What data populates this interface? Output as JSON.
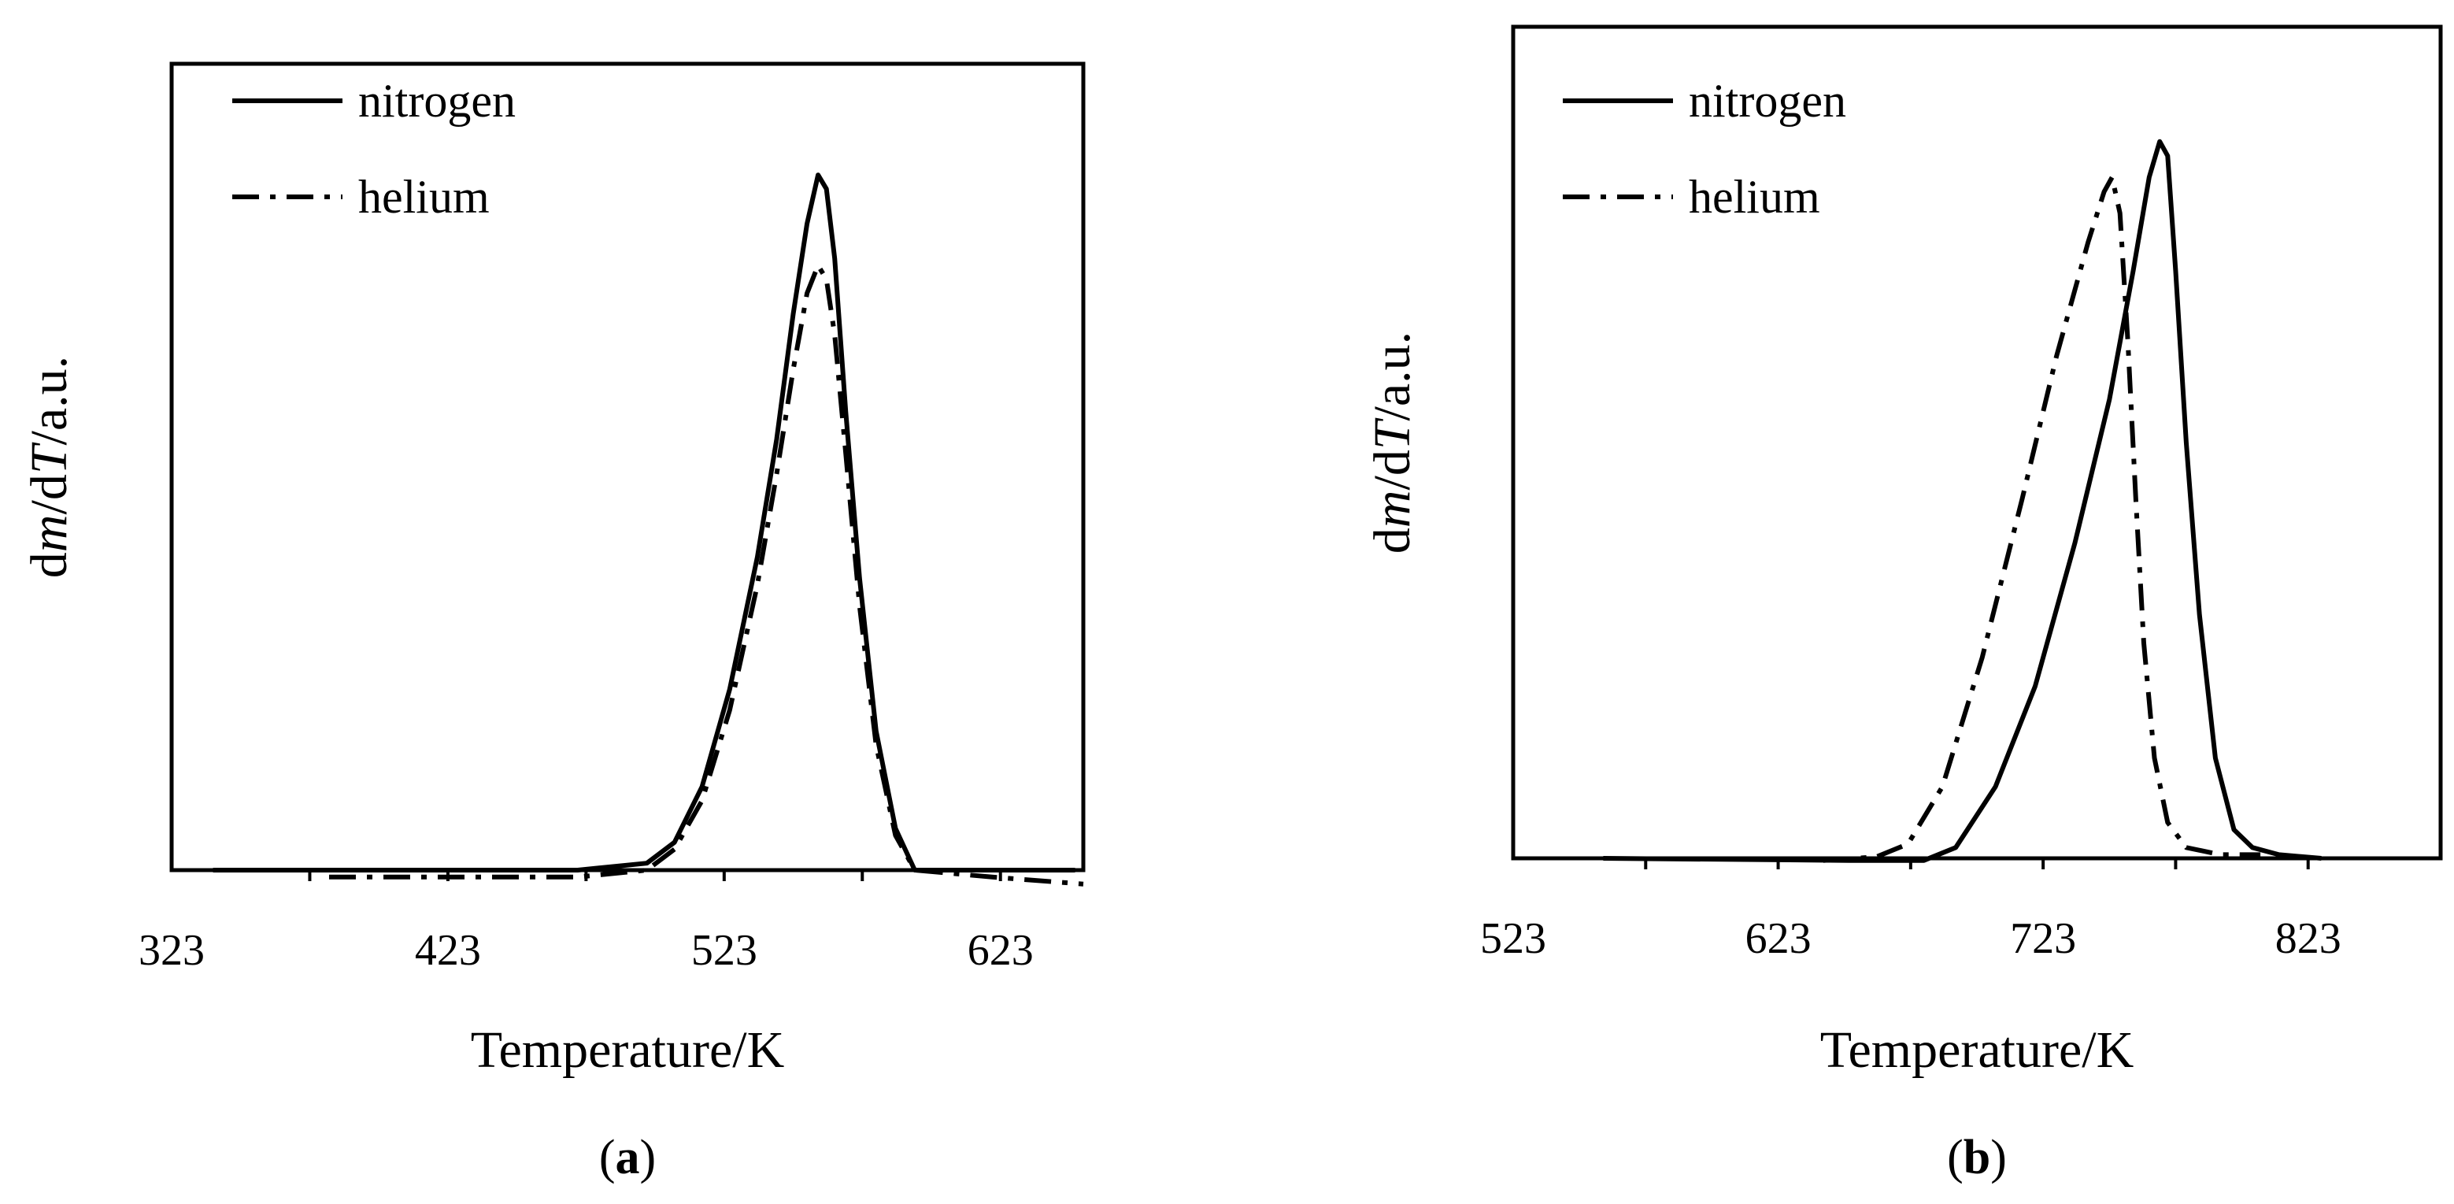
{
  "chart_data": [
    {
      "panel_label": "(a)",
      "type": "line",
      "xlabel": "Temperature/K",
      "ylabel_parts": [
        "d",
        "m",
        "/d",
        "T",
        "/a.u."
      ],
      "xlim": [
        323,
        653
      ],
      "ylim": [
        0,
        1.16
      ],
      "x_ticks": [
        323,
        423,
        523,
        623
      ],
      "grid": false,
      "legend_position": "top-left",
      "series": [
        {
          "name": "nitrogen",
          "style": "solid",
          "points": [
            [
              338,
              0.0
            ],
            [
              470,
              0.0
            ],
            [
              495,
              0.01
            ],
            [
              505,
              0.04
            ],
            [
              515,
              0.12
            ],
            [
              525,
              0.26
            ],
            [
              535,
              0.45
            ],
            [
              542,
              0.62
            ],
            [
              548,
              0.8
            ],
            [
              553,
              0.93
            ],
            [
              557,
              1.0
            ],
            [
              560,
              0.98
            ],
            [
              563,
              0.88
            ],
            [
              567,
              0.66
            ],
            [
              572,
              0.42
            ],
            [
              578,
              0.2
            ],
            [
              585,
              0.06
            ],
            [
              592,
              0.0
            ],
            [
              650,
              0.0
            ]
          ]
        },
        {
          "name": "helium",
          "style": "dashdot",
          "points": [
            [
              380,
              -0.01
            ],
            [
              470,
              -0.01
            ],
            [
              495,
              0.0
            ],
            [
              505,
              0.03
            ],
            [
              515,
              0.1
            ],
            [
              525,
              0.23
            ],
            [
              535,
              0.41
            ],
            [
              542,
              0.57
            ],
            [
              548,
              0.72
            ],
            [
              553,
              0.83
            ],
            [
              557,
              0.87
            ],
            [
              560,
              0.85
            ],
            [
              563,
              0.77
            ],
            [
              567,
              0.6
            ],
            [
              572,
              0.38
            ],
            [
              578,
              0.18
            ],
            [
              585,
              0.05
            ],
            [
              592,
              0.0
            ],
            [
              620,
              -0.01
            ],
            [
              653,
              -0.02
            ]
          ]
        }
      ]
    },
    {
      "panel_label": "(b)",
      "type": "line",
      "xlabel": "Temperature/K",
      "ylabel_parts": [
        "d",
        "m",
        "/d",
        "T",
        "/a.u."
      ],
      "xlim": [
        523,
        873
      ],
      "ylim": [
        0,
        1.16
      ],
      "x_ticks": [
        523,
        623,
        723,
        823
      ],
      "grid": false,
      "legend_position": "top-left",
      "series": [
        {
          "name": "nitrogen",
          "style": "solid",
          "points": [
            [
              557,
              0.0
            ],
            [
              650,
              -0.003
            ],
            [
              678,
              -0.003
            ],
            [
              690,
              0.015
            ],
            [
              705,
              0.1
            ],
            [
              720,
              0.24
            ],
            [
              735,
              0.44
            ],
            [
              748,
              0.64
            ],
            [
              757,
              0.82
            ],
            [
              763,
              0.95
            ],
            [
              767,
              1.0
            ],
            [
              770,
              0.98
            ],
            [
              773,
              0.82
            ],
            [
              777,
              0.58
            ],
            [
              782,
              0.34
            ],
            [
              788,
              0.14
            ],
            [
              795,
              0.04
            ],
            [
              802,
              0.015
            ],
            [
              812,
              0.005
            ],
            [
              828,
              0.0
            ]
          ]
        },
        {
          "name": "helium",
          "style": "dashdot",
          "points": [
            [
              640,
              -0.003
            ],
            [
              660,
              0.002
            ],
            [
              672,
              0.02
            ],
            [
              685,
              0.1
            ],
            [
              700,
              0.28
            ],
            [
              715,
              0.5
            ],
            [
              728,
              0.7
            ],
            [
              740,
              0.86
            ],
            [
              746,
              0.93
            ],
            [
              749,
              0.95
            ],
            [
              752,
              0.9
            ],
            [
              755,
              0.72
            ],
            [
              758,
              0.5
            ],
            [
              761,
              0.3
            ],
            [
              765,
              0.14
            ],
            [
              770,
              0.05
            ],
            [
              777,
              0.015
            ],
            [
              790,
              0.005
            ],
            [
              805,
              0.005
            ]
          ]
        }
      ]
    }
  ]
}
